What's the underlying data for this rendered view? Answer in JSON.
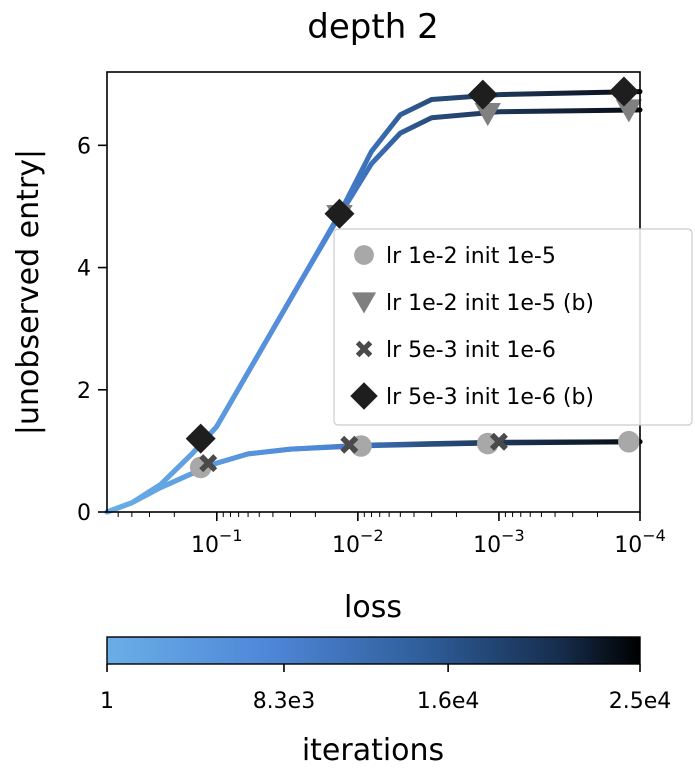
{
  "chart_data": {
    "type": "line",
    "title": "depth 2",
    "xlabel": "loss",
    "ylabel": "|unobserved entry|",
    "x_scale": "log (reversed)",
    "xlim": [
      0.6,
      0.0001
    ],
    "ylim": [
      0,
      7.2
    ],
    "x_ticks": [
      {
        "base": "10",
        "exp": "−1",
        "value": 0.1
      },
      {
        "base": "10",
        "exp": "−2",
        "value": 0.01
      },
      {
        "base": "10",
        "exp": "−3",
        "value": 0.001
      },
      {
        "base": "10",
        "exp": "−4",
        "value": 0.0001
      }
    ],
    "y_ticks": [
      {
        "label": "0",
        "value": 0
      },
      {
        "label": "2",
        "value": 2
      },
      {
        "label": "4",
        "value": 4
      },
      {
        "label": "6",
        "value": 6
      }
    ],
    "legend_position": "center-right",
    "series": [
      {
        "name": "lr 1e-2 init 1e-5",
        "marker": "circle",
        "color": "#a8a8a8",
        "curve": [
          [
            0.6,
            0
          ],
          [
            0.4,
            0.15
          ],
          [
            0.25,
            0.4
          ],
          [
            0.16,
            0.6
          ],
          [
            0.1,
            0.8
          ],
          [
            0.06,
            0.95
          ],
          [
            0.03,
            1.03
          ],
          [
            0.01,
            1.08
          ],
          [
            0.003,
            1.11
          ],
          [
            0.001,
            1.13
          ],
          [
            0.0001,
            1.15
          ]
        ],
        "markers": [
          [
            0.13,
            0.73
          ],
          [
            0.0095,
            1.08
          ],
          [
            0.0012,
            1.12
          ],
          [
            0.00012,
            1.15
          ]
        ]
      },
      {
        "name": "lr 1e-2 init 1e-5 (b)",
        "marker": "triangle-down",
        "color": "#808080",
        "curve": [
          [
            0.6,
            0
          ],
          [
            0.4,
            0.15
          ],
          [
            0.25,
            0.45
          ],
          [
            0.15,
            0.95
          ],
          [
            0.1,
            1.4
          ],
          [
            0.05,
            2.6
          ],
          [
            0.025,
            3.8
          ],
          [
            0.0135,
            4.85
          ],
          [
            0.008,
            5.7
          ],
          [
            0.005,
            6.2
          ],
          [
            0.003,
            6.45
          ],
          [
            0.001,
            6.55
          ],
          [
            0.0001,
            6.58
          ]
        ],
        "markers": [
          [
            0.0135,
            4.85
          ],
          [
            0.0012,
            6.52
          ],
          [
            0.00012,
            6.58
          ]
        ]
      },
      {
        "name": "lr 5e-3 init 1e-6",
        "marker": "x",
        "color": "#4a4a4a",
        "curve": [
          [
            0.6,
            0
          ],
          [
            0.4,
            0.15
          ],
          [
            0.25,
            0.4
          ],
          [
            0.16,
            0.6
          ],
          [
            0.1,
            0.8
          ],
          [
            0.06,
            0.95
          ],
          [
            0.03,
            1.03
          ],
          [
            0.01,
            1.09
          ],
          [
            0.003,
            1.12
          ],
          [
            0.001,
            1.14
          ],
          [
            0.0001,
            1.15
          ]
        ],
        "markers": [
          [
            0.115,
            0.8
          ],
          [
            0.0115,
            1.1
          ],
          [
            0.001,
            1.15
          ]
        ]
      },
      {
        "name": "lr 5e-3 init 1e-6 (b)",
        "marker": "diamond",
        "color": "#1e1e1e",
        "curve": [
          [
            0.6,
            0
          ],
          [
            0.4,
            0.15
          ],
          [
            0.25,
            0.45
          ],
          [
            0.15,
            0.95
          ],
          [
            0.1,
            1.4
          ],
          [
            0.05,
            2.6
          ],
          [
            0.025,
            3.8
          ],
          [
            0.0135,
            4.88
          ],
          [
            0.008,
            5.9
          ],
          [
            0.005,
            6.5
          ],
          [
            0.003,
            6.75
          ],
          [
            0.001,
            6.83
          ],
          [
            0.0001,
            6.88
          ]
        ],
        "markers": [
          [
            0.13,
            1.2
          ],
          [
            0.0135,
            4.88
          ],
          [
            0.0013,
            6.83
          ],
          [
            0.00013,
            6.88
          ]
        ]
      }
    ]
  },
  "colorbar": {
    "label": "iterations",
    "ticks": [
      {
        "label": "1",
        "value": 1
      },
      {
        "label": "8.3e3",
        "value": 8300
      },
      {
        "label": "1.6e4",
        "value": 16000
      },
      {
        "label": "2.5e4",
        "value": 25000
      }
    ],
    "max": 25000,
    "colors": [
      "#6aaee6",
      "#4f87d8",
      "#2e5d99",
      "#162d4d",
      "#000000"
    ]
  }
}
